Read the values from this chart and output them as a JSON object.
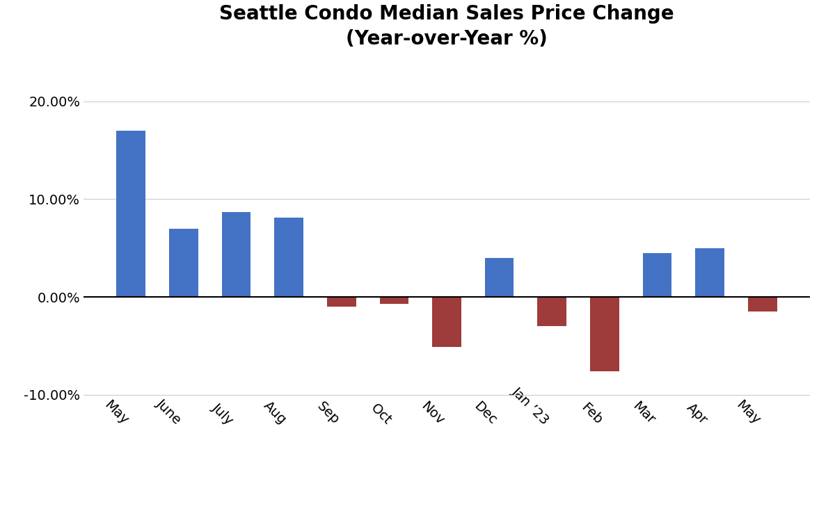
{
  "categories": [
    "May",
    "June",
    "July",
    "Aug",
    "Sep",
    "Oct",
    "Nov",
    "Dec",
    "Jan ’23",
    "Feb",
    "Mar",
    "Apr",
    "May"
  ],
  "values": [
    17.0,
    7.0,
    8.7,
    8.1,
    -1.0,
    -0.7,
    -5.1,
    4.0,
    -3.0,
    -7.6,
    4.5,
    5.0,
    -1.5
  ],
  "positive_color": "#4472C4",
  "negative_color": "#9E3B3B",
  "title_line1": "Seattle Condo Median Sales Price Change",
  "title_line2": "(Year-over-Year %)",
  "title_fontsize": 20,
  "tick_fontsize": 14,
  "ylim": [
    -12,
    24
  ],
  "yticks": [
    -10,
    0,
    10,
    20
  ],
  "background_color": "#ffffff",
  "grid_color": "#cccccc",
  "xlabel_rotation": -45,
  "bar_width": 0.55
}
